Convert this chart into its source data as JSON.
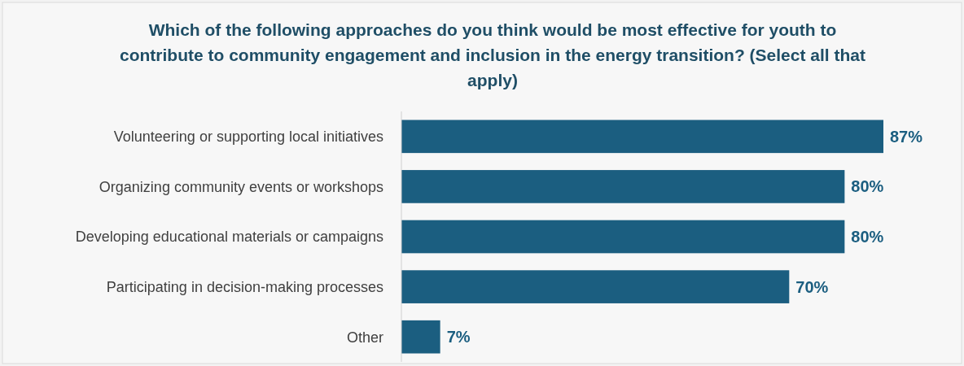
{
  "chart_data": {
    "type": "bar",
    "orientation": "horizontal",
    "title": "Which of the following approaches do you think would be most effective for youth to contribute to community engagement and inclusion in the energy transition? (Select all that apply)",
    "categories": [
      "Volunteering or supporting local initiatives",
      "Organizing community events or workshops",
      "Developing educational materials or campaigns",
      "Participating in decision-making processes",
      "Other"
    ],
    "series": [
      {
        "color": "#1b5e80",
        "values": [
          87,
          80,
          80,
          70,
          7
        ],
        "value_labels": [
          "87%",
          "80%",
          "80%",
          "70%",
          "7%"
        ]
      }
    ],
    "tick_labels": "y"
  }
}
